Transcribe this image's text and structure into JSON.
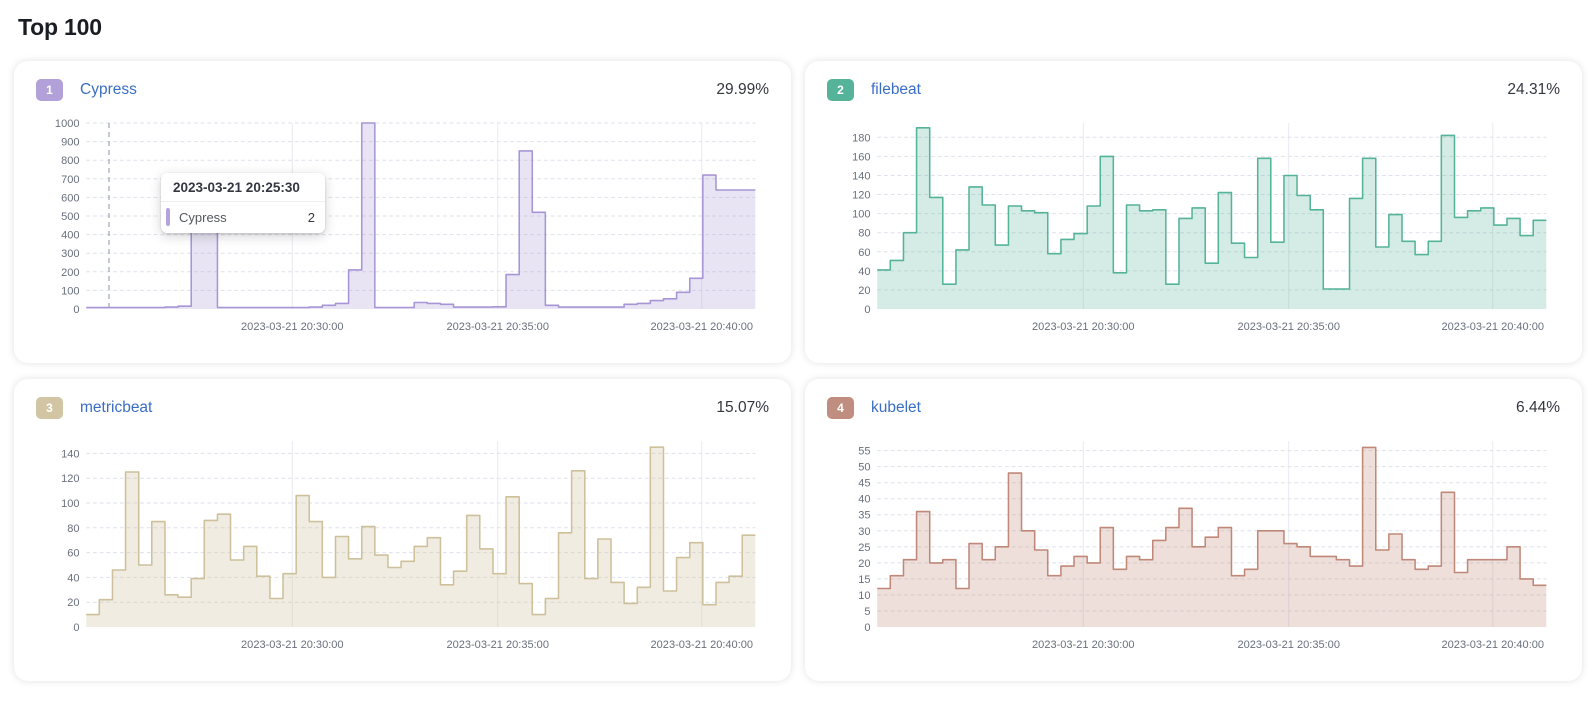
{
  "page": {
    "title": "Top 100"
  },
  "panels": [
    {
      "rank": "1",
      "name": "Cypress",
      "percent": "29.99%",
      "badge_color": "#b2a0d9",
      "line_color": "#a795d6",
      "fill_color": "rgba(167,149,214,0.26)"
    },
    {
      "rank": "2",
      "name": "filebeat",
      "percent": "24.31%",
      "badge_color": "#54b399",
      "line_color": "#54b399",
      "fill_color": "rgba(84,179,153,0.25)"
    },
    {
      "rank": "3",
      "name": "metricbeat",
      "percent": "15.07%",
      "badge_color": "#d1c5a4",
      "line_color": "#cdc09a",
      "fill_color": "rgba(205,192,154,0.3)"
    },
    {
      "rank": "4",
      "name": "kubelet",
      "percent": "6.44%",
      "badge_color": "#c08d81",
      "line_color": "#c08878",
      "fill_color": "rgba(192,136,120,0.27)"
    }
  ],
  "tooltip": {
    "title": "2023-03-21 20:25:30",
    "series_label": "Cypress",
    "value": "2",
    "mark_color": "#b5a3dc"
  },
  "chart_data": [
    {
      "type": "area",
      "title": "Cypress",
      "ylim": [
        0,
        1000
      ],
      "yticks": [
        0,
        100,
        200,
        300,
        400,
        500,
        600,
        700,
        800,
        900,
        1000
      ],
      "x_ticks": [
        {
          "label": "2023-03-21 20:30:00",
          "pos": 0.308
        },
        {
          "label": "2023-03-21 20:35:00",
          "pos": 0.615
        },
        {
          "label": "2023-03-21 20:40:00",
          "pos": 0.92
        }
      ],
      "cursor_pos": 0.034,
      "grid": "dashed-horizontal",
      "values": [
        8,
        8,
        8,
        8,
        8,
        8,
        10,
        15,
        480,
        480,
        8,
        8,
        8,
        8,
        8,
        8,
        8,
        10,
        20,
        30,
        210,
        1000,
        8,
        8,
        8,
        35,
        30,
        25,
        10,
        10,
        10,
        12,
        185,
        850,
        520,
        20,
        10,
        10,
        10,
        10,
        10,
        25,
        30,
        45,
        55,
        90,
        165,
        720,
        640,
        640,
        640
      ]
    },
    {
      "type": "area",
      "title": "filebeat",
      "ylim": [
        0,
        195
      ],
      "yticks": [
        0,
        20,
        40,
        60,
        80,
        100,
        120,
        140,
        160,
        180
      ],
      "x_ticks": [
        {
          "label": "2023-03-21 20:30:00",
          "pos": 0.308
        },
        {
          "label": "2023-03-21 20:35:00",
          "pos": 0.615
        },
        {
          "label": "2023-03-21 20:40:00",
          "pos": 0.92
        }
      ],
      "grid": "dashed-horizontal",
      "values": [
        41,
        51,
        80,
        190,
        117,
        26,
        62,
        128,
        109,
        67,
        108,
        103,
        101,
        58,
        73,
        79,
        108,
        160,
        38,
        109,
        103,
        104,
        26,
        95,
        106,
        48,
        122,
        69,
        54,
        158,
        70,
        140,
        119,
        104,
        21,
        21,
        116,
        158,
        65,
        99,
        71,
        57,
        71,
        182,
        96,
        103,
        106,
        88,
        95,
        77,
        93
      ]
    },
    {
      "type": "area",
      "title": "metricbeat",
      "ylim": [
        0,
        150
      ],
      "yticks": [
        0,
        20,
        40,
        60,
        80,
        100,
        120,
        140
      ],
      "x_ticks": [
        {
          "label": "2023-03-21 20:30:00",
          "pos": 0.308
        },
        {
          "label": "2023-03-21 20:35:00",
          "pos": 0.615
        },
        {
          "label": "2023-03-21 20:40:00",
          "pos": 0.92
        }
      ],
      "grid": "dashed-horizontal",
      "values": [
        10,
        22,
        46,
        125,
        50,
        85,
        26,
        24,
        39,
        86,
        91,
        54,
        65,
        41,
        23,
        43,
        106,
        85,
        40,
        73,
        55,
        81,
        58,
        48,
        53,
        65,
        72,
        34,
        45,
        90,
        63,
        43,
        105,
        35,
        10,
        23,
        76,
        126,
        39,
        71,
        36,
        19,
        32,
        145,
        29,
        56,
        68,
        18,
        36,
        41,
        74
      ]
    },
    {
      "type": "area",
      "title": "kubelet",
      "ylim": [
        0,
        58
      ],
      "yticks": [
        0,
        5,
        10,
        15,
        20,
        25,
        30,
        35,
        40,
        45,
        50,
        55
      ],
      "x_ticks": [
        {
          "label": "2023-03-21 20:30:00",
          "pos": 0.308
        },
        {
          "label": "2023-03-21 20:35:00",
          "pos": 0.615
        },
        {
          "label": "2023-03-21 20:40:00",
          "pos": 0.92
        }
      ],
      "grid": "dashed-horizontal",
      "values": [
        12,
        16,
        21,
        36,
        20,
        21,
        12,
        26,
        21,
        25,
        48,
        30,
        24,
        16,
        19,
        22,
        20,
        31,
        18,
        22,
        21,
        27,
        31,
        37,
        25,
        28,
        31,
        16,
        18,
        30,
        30,
        26,
        25,
        22,
        22,
        21,
        19,
        56,
        24,
        29,
        21,
        18,
        19,
        42,
        17,
        21,
        21,
        21,
        25,
        15,
        13
      ]
    }
  ]
}
